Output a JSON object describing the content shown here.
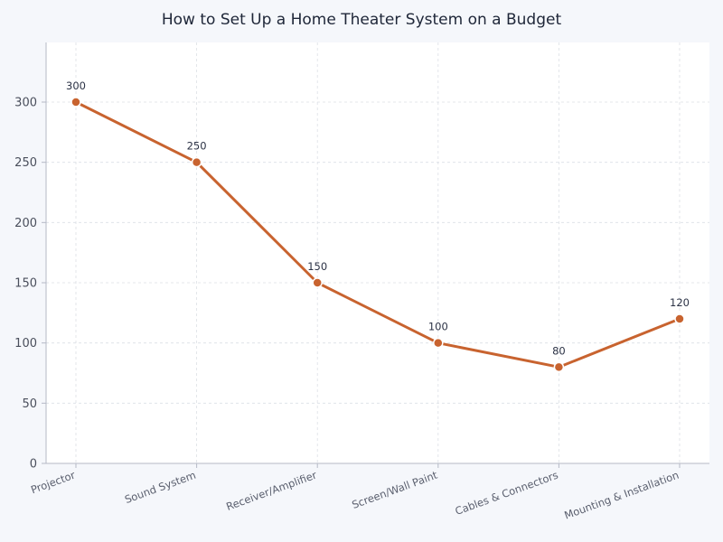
{
  "chart_data": {
    "type": "line",
    "title": "How to Set Up a Home Theater System on a Budget",
    "xlabel": "",
    "ylabel": "",
    "categories": [
      "Projector",
      "Sound System",
      "Receiver/Amplifier",
      "Screen/Wall Paint",
      "Cables & Connectors",
      "Mounting & Installation"
    ],
    "series": [
      {
        "name": "Cost",
        "values": [
          300,
          250,
          150,
          100,
          80,
          120
        ],
        "color": "#c8632f"
      }
    ],
    "data_labels": [
      "300",
      "250",
      "150",
      "100",
      "80",
      "120"
    ],
    "ylim": [
      0,
      350
    ],
    "yticks": [
      0,
      50,
      100,
      150,
      200,
      250,
      300
    ],
    "ytick_labels": [
      "0",
      "50",
      "100",
      "150",
      "200",
      "250",
      "300"
    ],
    "grid": true,
    "legend": "none",
    "x_tick_rotation": -20
  },
  "colors": {
    "background": "#f5f7fb",
    "plot_background": "#ffffff",
    "line": "#c8632f",
    "grid": "#dcdfe5",
    "axis": "#b5b9c6",
    "title": "#1e2638"
  }
}
